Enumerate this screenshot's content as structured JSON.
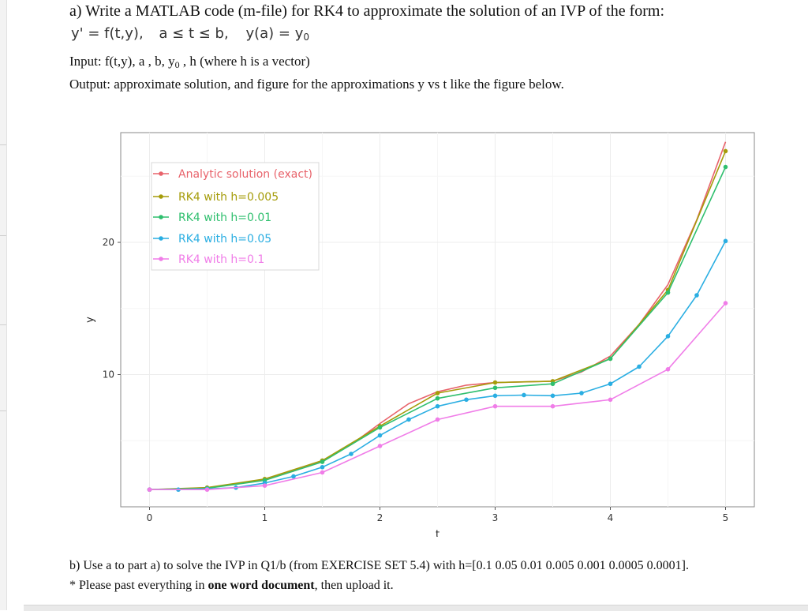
{
  "question": {
    "title": "a) Write a MATLAB code (m-file) for RK4 to approximate the solution of an IVP of the form:",
    "formula": {
      "ode": "y' = f(t,y),",
      "interval": "a ≤ t ≤ b,",
      "initial_lhs": "y(a) = y",
      "initial_sub": "0"
    },
    "input_prefix": "Input:  f(t,y), a , b, y",
    "input_sub": "0",
    "input_suffix": " , h (where h is a vector)",
    "output_line": "Output: approximate solution, and figure for the approximations y vs t like the figure below.",
    "part_b": "b)  Use a to part a) to solve the IVP in Q1/b (from  EXERCISE SET 5.4) with h=[0.1 0.05 0.01 0.005 0.001 0.0005 0.0001].",
    "note_prefix": "* Please past everything in ",
    "note_bold": "one word document",
    "note_suffix": ", then upload it."
  },
  "chart_data": {
    "type": "line",
    "xlabel": "t",
    "ylabel": "y",
    "xlim": [
      -0.25,
      5.25
    ],
    "ylim": [
      0,
      28.3
    ],
    "xticks": [
      0,
      1,
      2,
      3,
      4,
      5
    ],
    "yticks": [
      10,
      20
    ],
    "grid": true,
    "legend_position": "top-left",
    "series": [
      {
        "name": "Analytic solution (exact)",
        "color": "#e8636b",
        "markers": false,
        "x": [
          0,
          0.25,
          0.5,
          0.75,
          1,
          1.25,
          1.5,
          1.75,
          2,
          2.25,
          2.5,
          2.75,
          3,
          3.25,
          3.5,
          3.75,
          4,
          4.25,
          4.5,
          4.75,
          5
        ],
        "y": [
          1.3,
          1.35,
          1.45,
          1.7,
          2.1,
          2.7,
          3.5,
          4.7,
          6.3,
          7.8,
          8.7,
          9.2,
          9.4,
          9.45,
          9.5,
          10.2,
          11.4,
          13.8,
          16.8,
          21.7,
          27.6
        ]
      },
      {
        "name": "RK4 with h=0.005",
        "color": "#a59c0a",
        "markers": true,
        "x": [
          0,
          0.5,
          1,
          1.5,
          2,
          2.5,
          3,
          3.5,
          4,
          4.5,
          5
        ],
        "y": [
          1.3,
          1.45,
          2.1,
          3.5,
          6.1,
          8.6,
          9.4,
          9.5,
          11.2,
          16.4,
          26.9
        ]
      },
      {
        "name": "RK4 with h=0.01",
        "color": "#2fbf6e",
        "markers": true,
        "x": [
          0,
          0.5,
          1,
          1.5,
          2,
          2.5,
          3,
          3.5,
          4,
          4.5,
          5
        ],
        "y": [
          1.3,
          1.4,
          2.0,
          3.4,
          6.0,
          8.2,
          9.0,
          9.3,
          11.2,
          16.2,
          25.7
        ]
      },
      {
        "name": "RK4 with h=0.05",
        "color": "#2aaee2",
        "markers": true,
        "x": [
          0,
          0.25,
          0.5,
          0.75,
          1,
          1.25,
          1.5,
          1.75,
          2,
          2.25,
          2.5,
          2.75,
          3,
          3.25,
          3.5,
          3.75,
          4,
          4.25,
          4.5,
          4.75,
          5
        ],
        "y": [
          1.3,
          1.3,
          1.35,
          1.45,
          1.8,
          2.3,
          3.0,
          4.0,
          5.4,
          6.6,
          7.6,
          8.1,
          8.4,
          8.45,
          8.4,
          8.6,
          9.3,
          10.6,
          12.9,
          16.0,
          20.1
        ]
      },
      {
        "name": "RK4 with h=0.1",
        "color": "#f07de8",
        "markers": true,
        "x": [
          0,
          0.5,
          1,
          1.5,
          2,
          2.5,
          3,
          3.5,
          4,
          4.5,
          5
        ],
        "y": [
          1.3,
          1.3,
          1.6,
          2.6,
          4.6,
          6.6,
          7.6,
          7.6,
          8.1,
          10.4,
          15.4
        ]
      }
    ]
  }
}
